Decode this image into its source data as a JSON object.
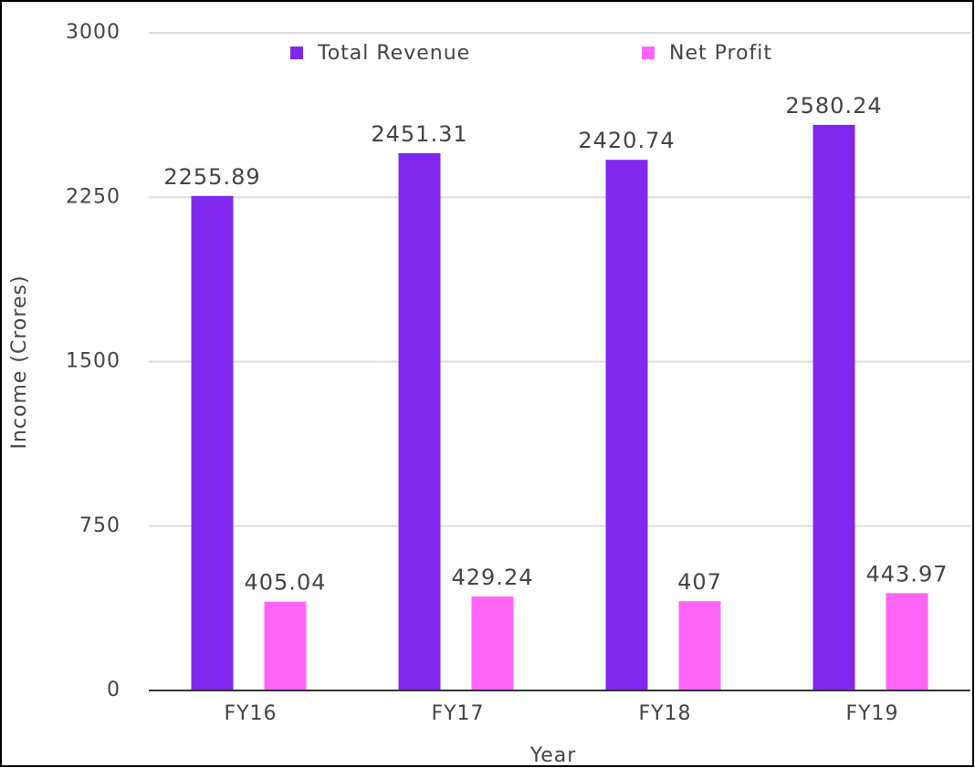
{
  "chart_data": {
    "type": "bar",
    "categories": [
      "FY16",
      "FY17",
      "FY18",
      "FY19"
    ],
    "series": [
      {
        "name": "Total Revenue",
        "color": "#8128ee",
        "values": [
          2255.89,
          2451.31,
          2420.74,
          2580.24
        ]
      },
      {
        "name": "Net Profit",
        "color": "#ff66f5",
        "values": [
          405.04,
          429.24,
          407,
          443.97
        ]
      }
    ],
    "x_label": "Year",
    "y_label": "Income (Crores)",
    "ylim": [
      0,
      3000
    ],
    "yticks": [
      0,
      750,
      1500,
      2250,
      3000
    ],
    "grid": true,
    "legend": "top"
  }
}
